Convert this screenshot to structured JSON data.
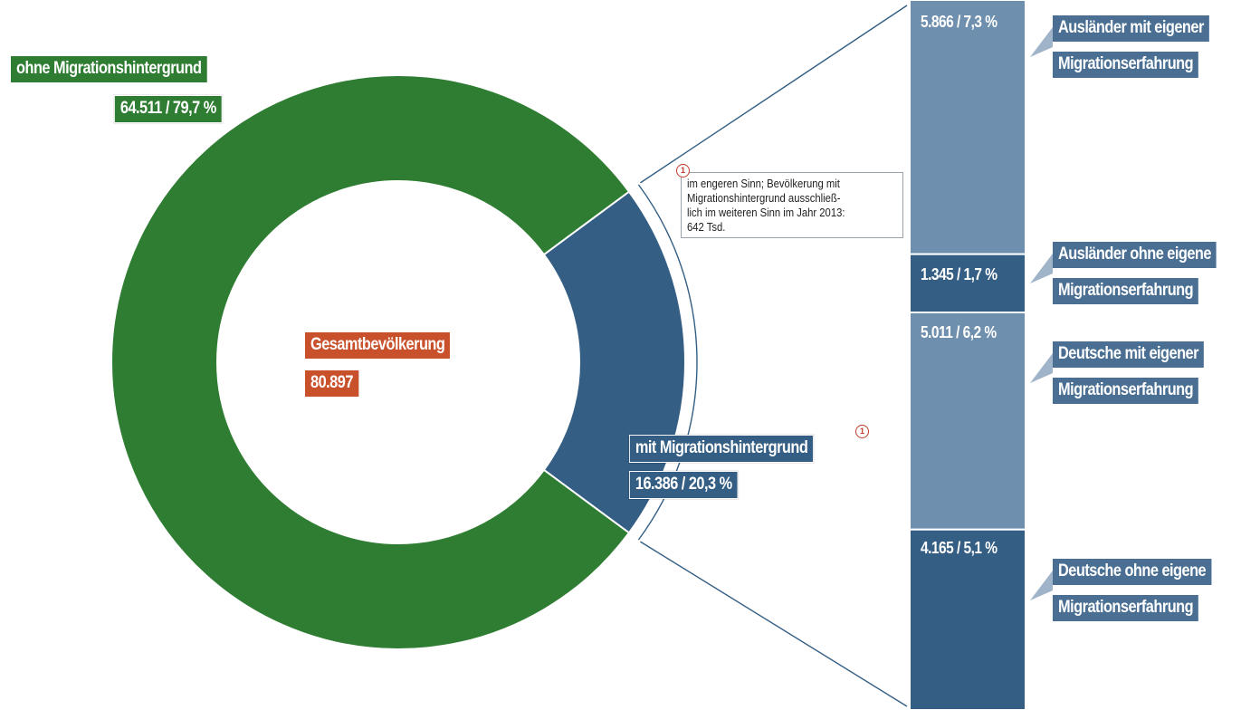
{
  "chart_data": {
    "type": "pie",
    "total": {
      "label": "Gesamtbevölkerung",
      "value_label": "80.897",
      "value": 80897
    },
    "donut": [
      {
        "name": "ohne Migrationshintergrund",
        "value": 64511,
        "percent": 79.7,
        "value_label": "64.511 / 79,7 %",
        "color": "#2e7d32"
      },
      {
        "name": "mit Migrationshintergrund",
        "value": 16386,
        "percent": 20.3,
        "value_label": "16.386 / 20,3 %",
        "color": "#345e83",
        "footnote": "1"
      }
    ],
    "breakdown": [
      {
        "name_lines": [
          "Ausländer mit eigener",
          "Migrationserfahrung"
        ],
        "value": 5866,
        "percent": 7.3,
        "value_label": "5.866 / 7,3 %",
        "color": "#6f8fae"
      },
      {
        "name_lines": [
          "Ausländer ohne eigene",
          "Migrationserfahrung"
        ],
        "value": 1345,
        "percent": 1.7,
        "value_label": "1.345 / 1,7 %",
        "color": "#345e83"
      },
      {
        "name_lines": [
          "Deutsche mit eigener",
          "Migrationserfahrung"
        ],
        "value": 5011,
        "percent": 6.2,
        "value_label": "5.011 / 6,2 %",
        "color": "#6f8fae"
      },
      {
        "name_lines": [
          "Deutsche ohne eigene",
          "Migrationserfahrung"
        ],
        "value": 4165,
        "percent": 5.1,
        "value_label": "4.165 / 5,1 %",
        "color": "#345e83"
      }
    ],
    "footnote": {
      "marker": "1",
      "lines": [
        "im engeren Sinn; Bevölkerung mit",
        "Migrationshintergrund ausschließ-",
        "lich im weiteren Sinn im Jahr 2013:",
        "642 Tsd."
      ]
    },
    "colors": {
      "green": "#2e7d32",
      "blue_dark": "#345e83",
      "blue_light": "#6f8fae",
      "orange": "#c8502a"
    }
  }
}
